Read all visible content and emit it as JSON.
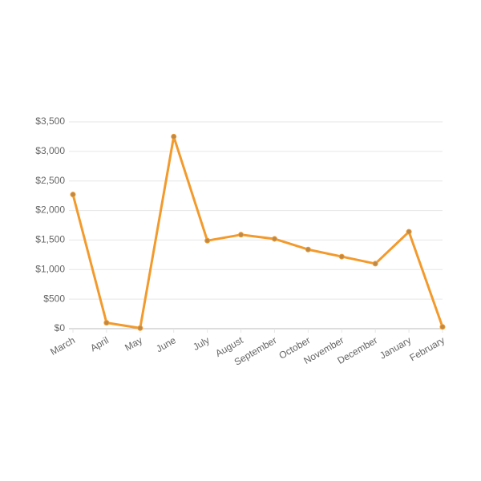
{
  "chart_data": {
    "type": "line",
    "categories": [
      "March",
      "April",
      "May",
      "June",
      "July",
      "August",
      "September",
      "October",
      "November",
      "December",
      "January",
      "February"
    ],
    "values": [
      2270,
      100,
      10,
      3250,
      1490,
      1590,
      1520,
      1340,
      1220,
      1100,
      1640,
      30
    ],
    "color": "#f39a2c",
    "point_color": "#b98a4e",
    "ylim": [
      0,
      3500
    ],
    "yticks": [
      {
        "value": 0,
        "label": "$0"
      },
      {
        "value": 500,
        "label": "$500"
      },
      {
        "value": 1000,
        "label": "$1,000"
      },
      {
        "value": 1500,
        "label": "$1,500"
      },
      {
        "value": 2000,
        "label": "$2,000"
      },
      {
        "value": 2500,
        "label": "$2,500"
      },
      {
        "value": 3000,
        "label": "$3,000"
      },
      {
        "value": 3500,
        "label": "$3,500"
      }
    ],
    "grid": true
  }
}
